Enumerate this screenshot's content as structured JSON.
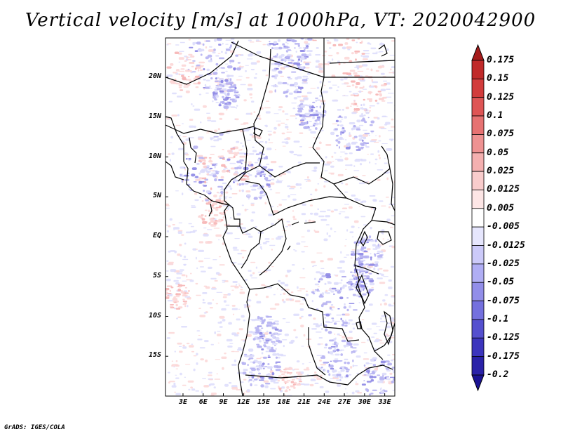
{
  "title": "Vertical velocity [m/s] at 1000hPa, VT: 2020042900",
  "lat_labels": [
    "20N",
    "15N",
    "10N",
    "5N",
    "EQ",
    "5S",
    "10S",
    "15S"
  ],
  "lat_values": [
    20,
    15,
    10,
    5,
    0,
    -5,
    -10,
    -15
  ],
  "lon_labels": [
    "3E",
    "6E",
    "9E",
    "12E",
    "15E",
    "18E",
    "21E",
    "24E",
    "27E",
    "30E",
    "33E"
  ],
  "lon_values": [
    3,
    6,
    9,
    12,
    15,
    18,
    21,
    24,
    27,
    30,
    33
  ],
  "colorbar": {
    "labels": [
      "0.175",
      "0.15",
      "0.125",
      "0.1",
      "0.075",
      "0.05",
      "0.025",
      "0.0125",
      "0.005",
      "-0.005",
      "-0.0125",
      "-0.025",
      "-0.05",
      "-0.075",
      "-0.1",
      "-0.125",
      "-0.175",
      "-0.2"
    ],
    "colors": [
      "#a51b1b",
      "#c02a2a",
      "#d23c3c",
      "#de5555",
      "#e67272",
      "#ee9292",
      "#f4b0b0",
      "#f9cccc",
      "#fde6e6",
      "#ffffff",
      "#e6e6fd",
      "#cccaf9",
      "#b0aef4",
      "#928ee9",
      "#7470de",
      "#5550cf",
      "#3c35bd",
      "#2a22a8",
      "#1b1393"
    ]
  },
  "map_colors": {
    "pos_light": "#fcd6d6",
    "pos_mid": "#f6b4b4",
    "neg_light": "#dcdcfb",
    "neg_mid": "#b6b2f2",
    "neg_strong": "#8c86e4",
    "boundary": "#000000"
  },
  "credit": "GrADS: IGES/COLA"
}
